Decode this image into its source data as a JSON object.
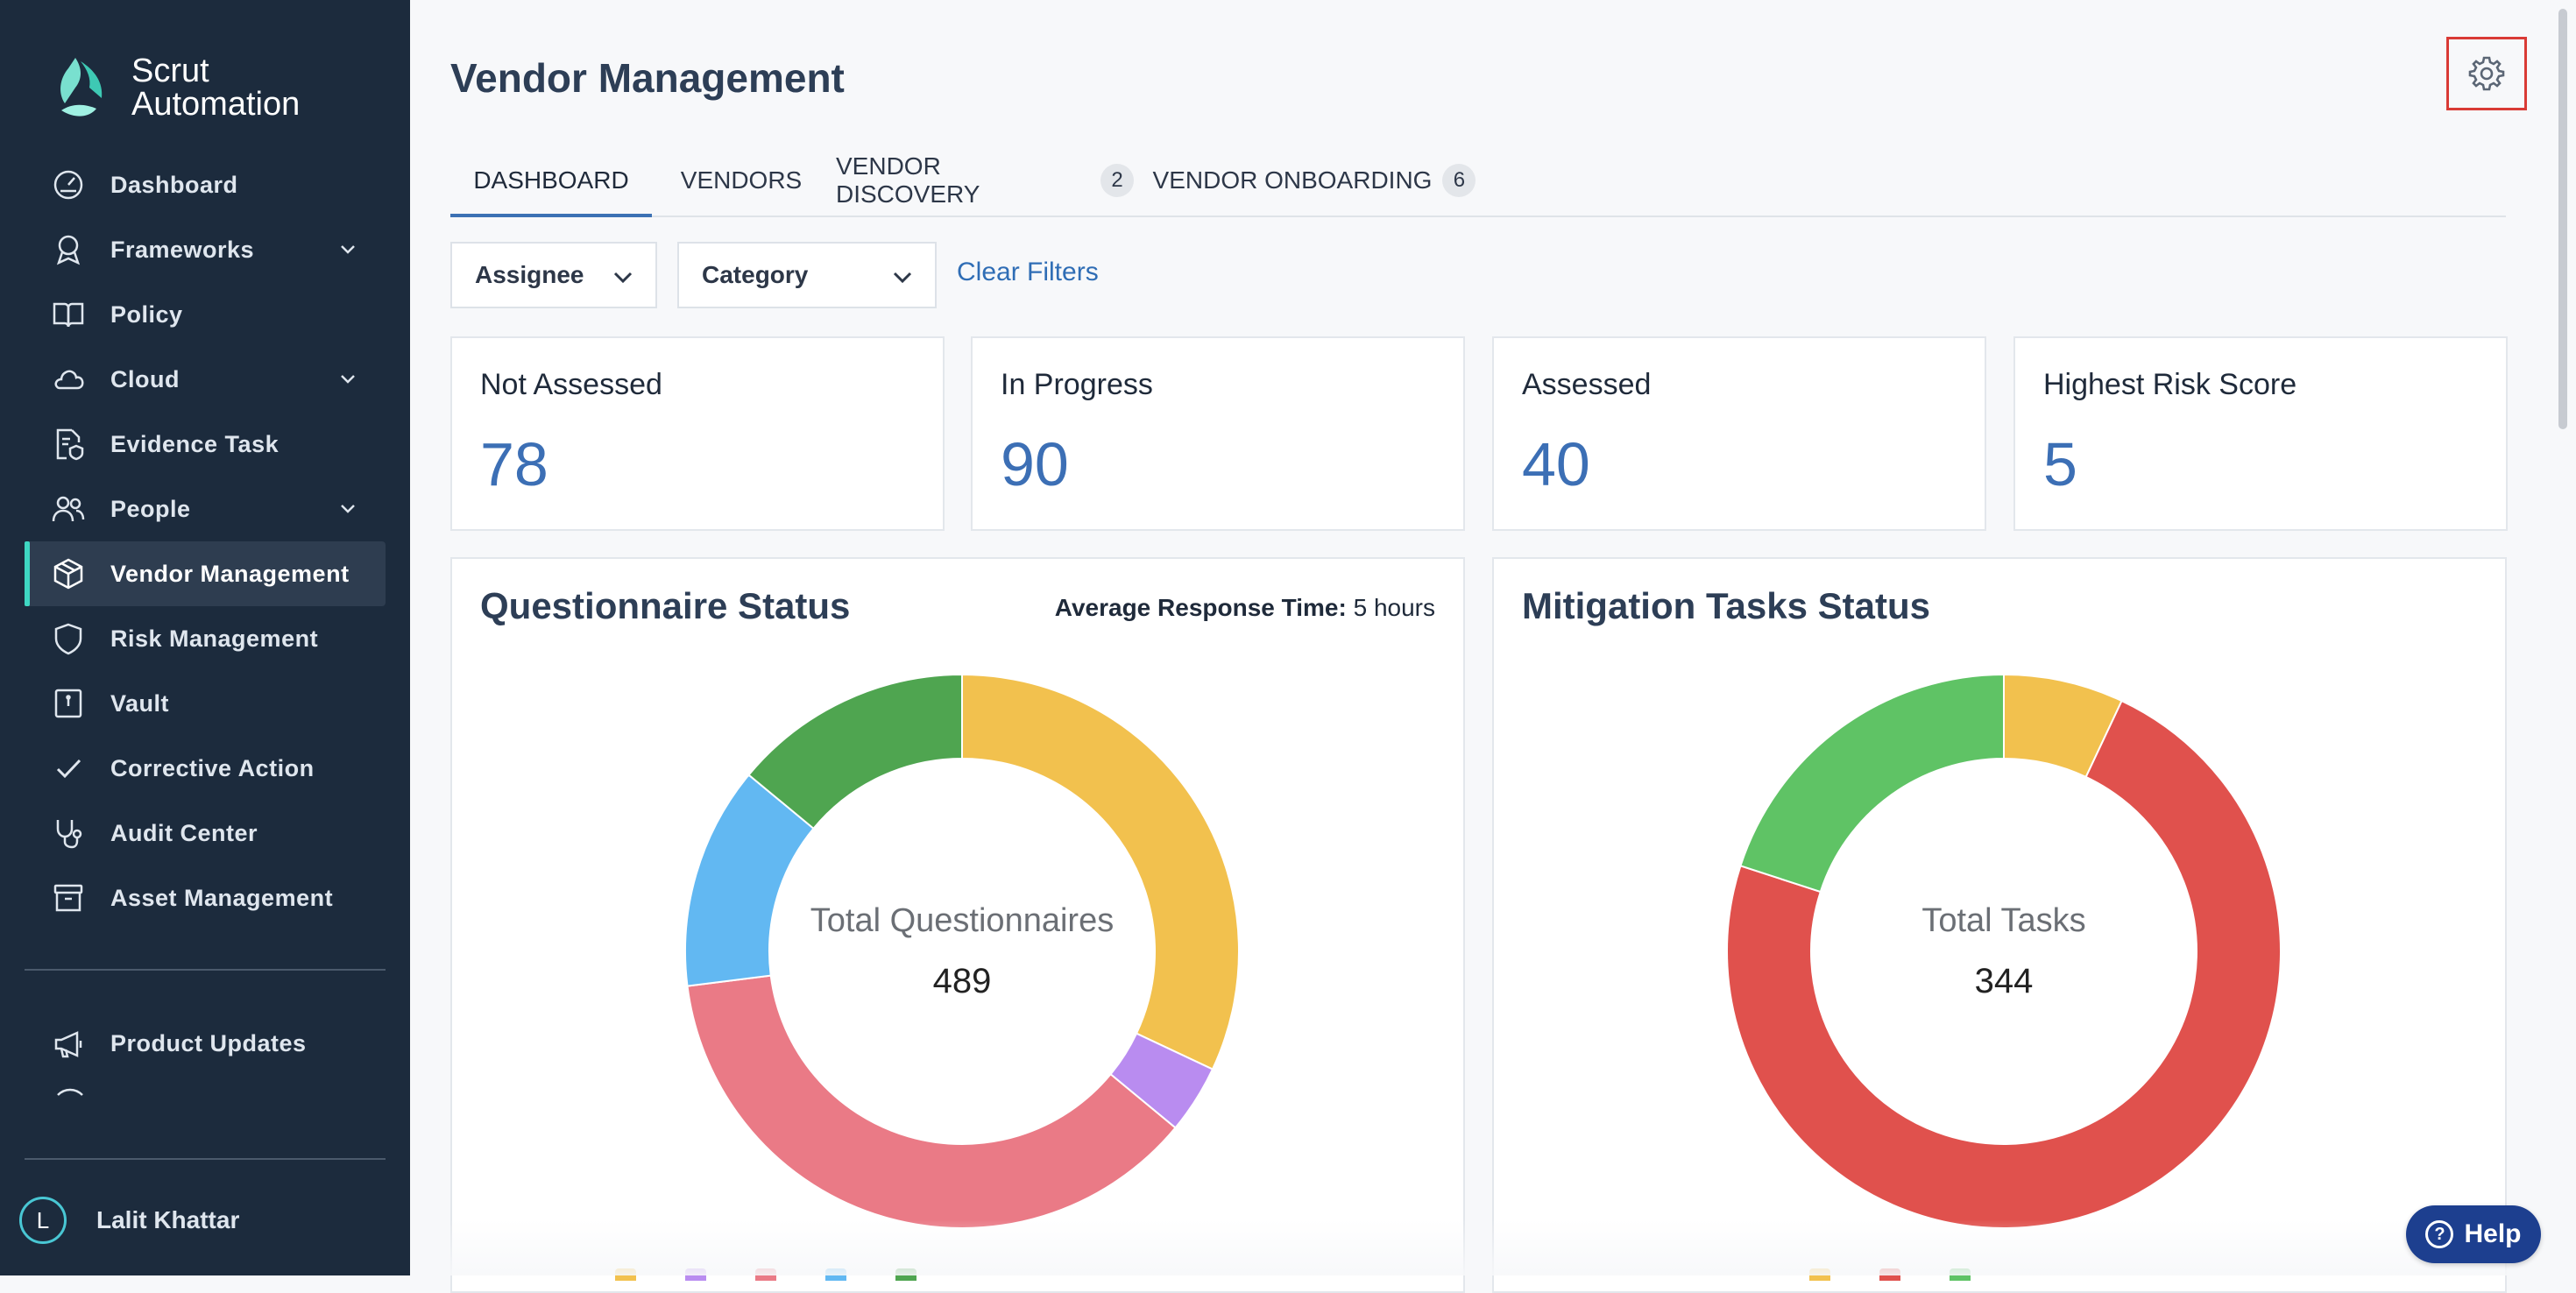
{
  "sidebar": {
    "brand": {
      "line1": "Scrut",
      "line2": "Automation"
    },
    "items": [
      {
        "label": "Dashboard",
        "icon": "dashboard-gauge-icon",
        "expandable": false
      },
      {
        "label": "Frameworks",
        "icon": "award-ribbon-icon",
        "expandable": true
      },
      {
        "label": "Policy",
        "icon": "open-book-icon",
        "expandable": false
      },
      {
        "label": "Cloud",
        "icon": "cloud-icon",
        "expandable": true
      },
      {
        "label": "Evidence Task",
        "icon": "document-shield-icon",
        "expandable": false
      },
      {
        "label": "People",
        "icon": "people-icon",
        "expandable": true
      },
      {
        "label": "Vendor Management",
        "icon": "box-icon",
        "expandable": false,
        "active": true
      },
      {
        "label": "Risk Management",
        "icon": "shield-icon",
        "expandable": false
      },
      {
        "label": "Vault",
        "icon": "vault-icon",
        "expandable": false
      },
      {
        "label": "Corrective Action",
        "icon": "checkmark-icon",
        "expandable": false
      },
      {
        "label": "Audit Center",
        "icon": "stethoscope-icon",
        "expandable": false
      },
      {
        "label": "Asset Management",
        "icon": "archive-box-icon",
        "expandable": false
      }
    ],
    "secondary_items": [
      {
        "label": "Product Updates",
        "icon": "megaphone-icon"
      }
    ],
    "user": {
      "initial": "L",
      "name": "Lalit Khattar"
    }
  },
  "header": {
    "title": "Vendor Management",
    "settings_icon": "gear-icon"
  },
  "tabs": [
    {
      "label": "DASHBOARD",
      "active": true
    },
    {
      "label": "VENDORS"
    },
    {
      "label": "VENDOR DISCOVERY",
      "badge": "2"
    },
    {
      "label": "VENDOR ONBOARDING",
      "badge": "6"
    }
  ],
  "filters": {
    "assignee": "Assignee",
    "category": "Category",
    "clear": "Clear Filters"
  },
  "stats": [
    {
      "label": "Not Assessed",
      "value": "78"
    },
    {
      "label": "In Progress",
      "value": "90"
    },
    {
      "label": "Assessed",
      "value": "40"
    },
    {
      "label": "Highest Risk Score",
      "value": "5"
    }
  ],
  "questionnaire": {
    "title": "Questionnaire Status",
    "avg_label": "Average Response Time:",
    "avg_value": "5 hours",
    "center_label": "Total Questionnaires",
    "center_value": "489"
  },
  "mitigation": {
    "title": "Mitigation Tasks Status",
    "center_label": "Total Tasks",
    "center_value": "344"
  },
  "help": {
    "label": "Help"
  },
  "chart_data": [
    {
      "type": "pie",
      "title": "Questionnaire Status",
      "total": 489,
      "slices": [
        {
          "fraction": 0.32,
          "color": "#f2c14e"
        },
        {
          "fraction": 0.04,
          "color": "#b98cf0"
        },
        {
          "fraction": 0.37,
          "color": "#ea7a86"
        },
        {
          "fraction": 0.13,
          "color": "#62b8f2"
        },
        {
          "fraction": 0.14,
          "color": "#4fa550"
        }
      ]
    },
    {
      "type": "pie",
      "title": "Mitigation Tasks Status",
      "total": 344,
      "slices": [
        {
          "fraction": 0.07,
          "color": "#f2c14e"
        },
        {
          "fraction": 0.73,
          "color": "#e0514d"
        },
        {
          "fraction": 0.2,
          "color": "#5fc365"
        }
      ]
    }
  ]
}
